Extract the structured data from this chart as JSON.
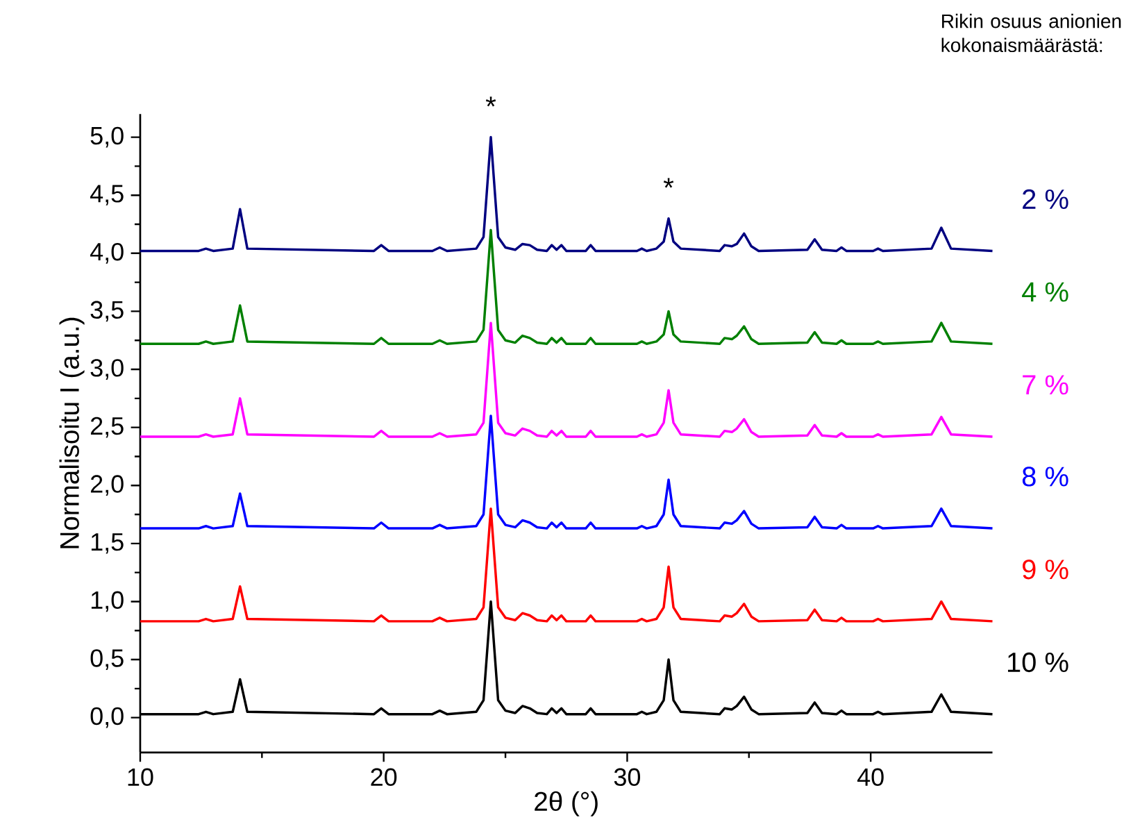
{
  "chart_data": {
    "type": "line",
    "xlabel": "2θ (°)",
    "ylabel": "Normalisoitu I (a.u.)",
    "legend_title": "Rikin osuus anionien kokonaismäärästä:",
    "xlim": [
      10,
      45
    ],
    "ylim": [
      -0.3,
      5.2
    ],
    "xticks": [
      10,
      20,
      30,
      40
    ],
    "yticks": [
      {
        "value": 0,
        "label": "0,0"
      },
      {
        "value": 0.5,
        "label": "0,5"
      },
      {
        "value": 1,
        "label": "1,0"
      },
      {
        "value": 1.5,
        "label": "1,5"
      },
      {
        "value": 2,
        "label": "2,0"
      },
      {
        "value": 2.5,
        "label": "2,5"
      },
      {
        "value": 3,
        "label": "3,0"
      },
      {
        "value": 3.5,
        "label": "3,5"
      },
      {
        "value": 4,
        "label": "4,0"
      },
      {
        "value": 4.5,
        "label": "4,5"
      },
      {
        "value": 5,
        "label": "5,0"
      }
    ],
    "x": [
      10,
      12.4,
      12.7,
      13.0,
      13.8,
      14.1,
      14.4,
      19.6,
      19.9,
      20.2,
      22.0,
      22.3,
      22.6,
      23.8,
      24.1,
      24.4,
      24.7,
      25.0,
      25.4,
      25.7,
      26.0,
      26.3,
      26.7,
      26.9,
      27.1,
      27.3,
      27.5,
      28.3,
      28.5,
      28.7,
      30.4,
      30.6,
      30.8,
      31.2,
      31.5,
      31.7,
      31.9,
      32.2,
      33.8,
      34.0,
      34.3,
      34.5,
      34.8,
      35.1,
      35.4,
      37.4,
      37.7,
      38.0,
      38.6,
      38.8,
      39.0,
      40.1,
      40.3,
      40.5,
      42.5,
      42.9,
      43.3,
      45
    ],
    "series": [
      {
        "name": "10 %",
        "color": "#000000",
        "values": [
          0.03,
          0.03,
          0.05,
          0.03,
          0.05,
          0.33,
          0.05,
          0.03,
          0.08,
          0.03,
          0.03,
          0.06,
          0.03,
          0.05,
          0.15,
          1.0,
          0.15,
          0.06,
          0.04,
          0.1,
          0.08,
          0.04,
          0.03,
          0.08,
          0.04,
          0.08,
          0.03,
          0.03,
          0.08,
          0.03,
          0.03,
          0.05,
          0.03,
          0.05,
          0.15,
          0.5,
          0.15,
          0.05,
          0.03,
          0.08,
          0.07,
          0.1,
          0.18,
          0.07,
          0.03,
          0.04,
          0.13,
          0.04,
          0.03,
          0.06,
          0.03,
          0.03,
          0.05,
          0.03,
          0.05,
          0.2,
          0.05,
          0.03
        ]
      },
      {
        "name": "9 %",
        "color": "#ff0000",
        "values": [
          0.83,
          0.83,
          0.85,
          0.83,
          0.85,
          1.13,
          0.85,
          0.83,
          0.88,
          0.83,
          0.83,
          0.86,
          0.83,
          0.85,
          0.95,
          1.8,
          0.95,
          0.86,
          0.84,
          0.9,
          0.88,
          0.84,
          0.83,
          0.88,
          0.84,
          0.88,
          0.83,
          0.83,
          0.88,
          0.83,
          0.83,
          0.85,
          0.83,
          0.85,
          0.95,
          1.3,
          0.95,
          0.85,
          0.83,
          0.88,
          0.87,
          0.9,
          0.98,
          0.87,
          0.83,
          0.84,
          0.93,
          0.84,
          0.83,
          0.86,
          0.83,
          0.83,
          0.85,
          0.83,
          0.85,
          1.0,
          0.85,
          0.83
        ]
      },
      {
        "name": "8 %",
        "color": "#0000ff",
        "values": [
          1.63,
          1.63,
          1.65,
          1.63,
          1.65,
          1.93,
          1.65,
          1.63,
          1.68,
          1.63,
          1.63,
          1.66,
          1.63,
          1.65,
          1.75,
          2.6,
          1.75,
          1.66,
          1.64,
          1.7,
          1.68,
          1.64,
          1.63,
          1.68,
          1.64,
          1.68,
          1.63,
          1.63,
          1.68,
          1.63,
          1.63,
          1.65,
          1.63,
          1.65,
          1.75,
          2.05,
          1.75,
          1.65,
          1.63,
          1.68,
          1.67,
          1.7,
          1.78,
          1.67,
          1.63,
          1.64,
          1.73,
          1.64,
          1.63,
          1.66,
          1.63,
          1.63,
          1.65,
          1.63,
          1.65,
          1.8,
          1.65,
          1.63
        ]
      },
      {
        "name": "7 %",
        "color": "#ff00ff",
        "values": [
          2.42,
          2.42,
          2.44,
          2.42,
          2.44,
          2.75,
          2.44,
          2.42,
          2.47,
          2.42,
          2.42,
          2.45,
          2.42,
          2.44,
          2.54,
          3.4,
          2.54,
          2.45,
          2.43,
          2.49,
          2.47,
          2.43,
          2.42,
          2.47,
          2.43,
          2.47,
          2.42,
          2.42,
          2.47,
          2.42,
          2.42,
          2.44,
          2.42,
          2.44,
          2.54,
          2.82,
          2.54,
          2.44,
          2.42,
          2.47,
          2.46,
          2.49,
          2.57,
          2.46,
          2.42,
          2.43,
          2.52,
          2.43,
          2.42,
          2.45,
          2.42,
          2.42,
          2.44,
          2.42,
          2.44,
          2.59,
          2.44,
          2.42
        ]
      },
      {
        "name": "4 %",
        "color": "#008000",
        "values": [
          3.22,
          3.22,
          3.24,
          3.22,
          3.24,
          3.55,
          3.24,
          3.22,
          3.27,
          3.22,
          3.22,
          3.25,
          3.22,
          3.24,
          3.34,
          4.2,
          3.34,
          3.25,
          3.23,
          3.29,
          3.27,
          3.23,
          3.22,
          3.27,
          3.23,
          3.27,
          3.22,
          3.22,
          3.27,
          3.22,
          3.22,
          3.24,
          3.22,
          3.24,
          3.3,
          3.5,
          3.3,
          3.24,
          3.22,
          3.27,
          3.26,
          3.29,
          3.37,
          3.26,
          3.22,
          3.23,
          3.32,
          3.23,
          3.22,
          3.25,
          3.22,
          3.22,
          3.24,
          3.22,
          3.24,
          3.4,
          3.24,
          3.22
        ]
      },
      {
        "name": "2 %",
        "color": "#000080",
        "values": [
          4.02,
          4.02,
          4.04,
          4.02,
          4.04,
          4.38,
          4.04,
          4.02,
          4.07,
          4.02,
          4.02,
          4.05,
          4.02,
          4.04,
          4.14,
          5.0,
          4.14,
          4.05,
          4.03,
          4.08,
          4.07,
          4.03,
          4.02,
          4.07,
          4.03,
          4.07,
          4.02,
          4.02,
          4.07,
          4.02,
          4.02,
          4.04,
          4.02,
          4.04,
          4.1,
          4.3,
          4.1,
          4.04,
          4.02,
          4.07,
          4.06,
          4.08,
          4.17,
          4.06,
          4.02,
          4.03,
          4.12,
          4.03,
          4.02,
          4.05,
          4.02,
          4.02,
          4.04,
          4.02,
          4.04,
          4.22,
          4.04,
          4.02
        ]
      }
    ],
    "annotations": [
      {
        "text": "*",
        "x": 24.4,
        "y": 5.0
      },
      {
        "text": "*",
        "x": 31.7,
        "y": 4.3
      }
    ]
  }
}
